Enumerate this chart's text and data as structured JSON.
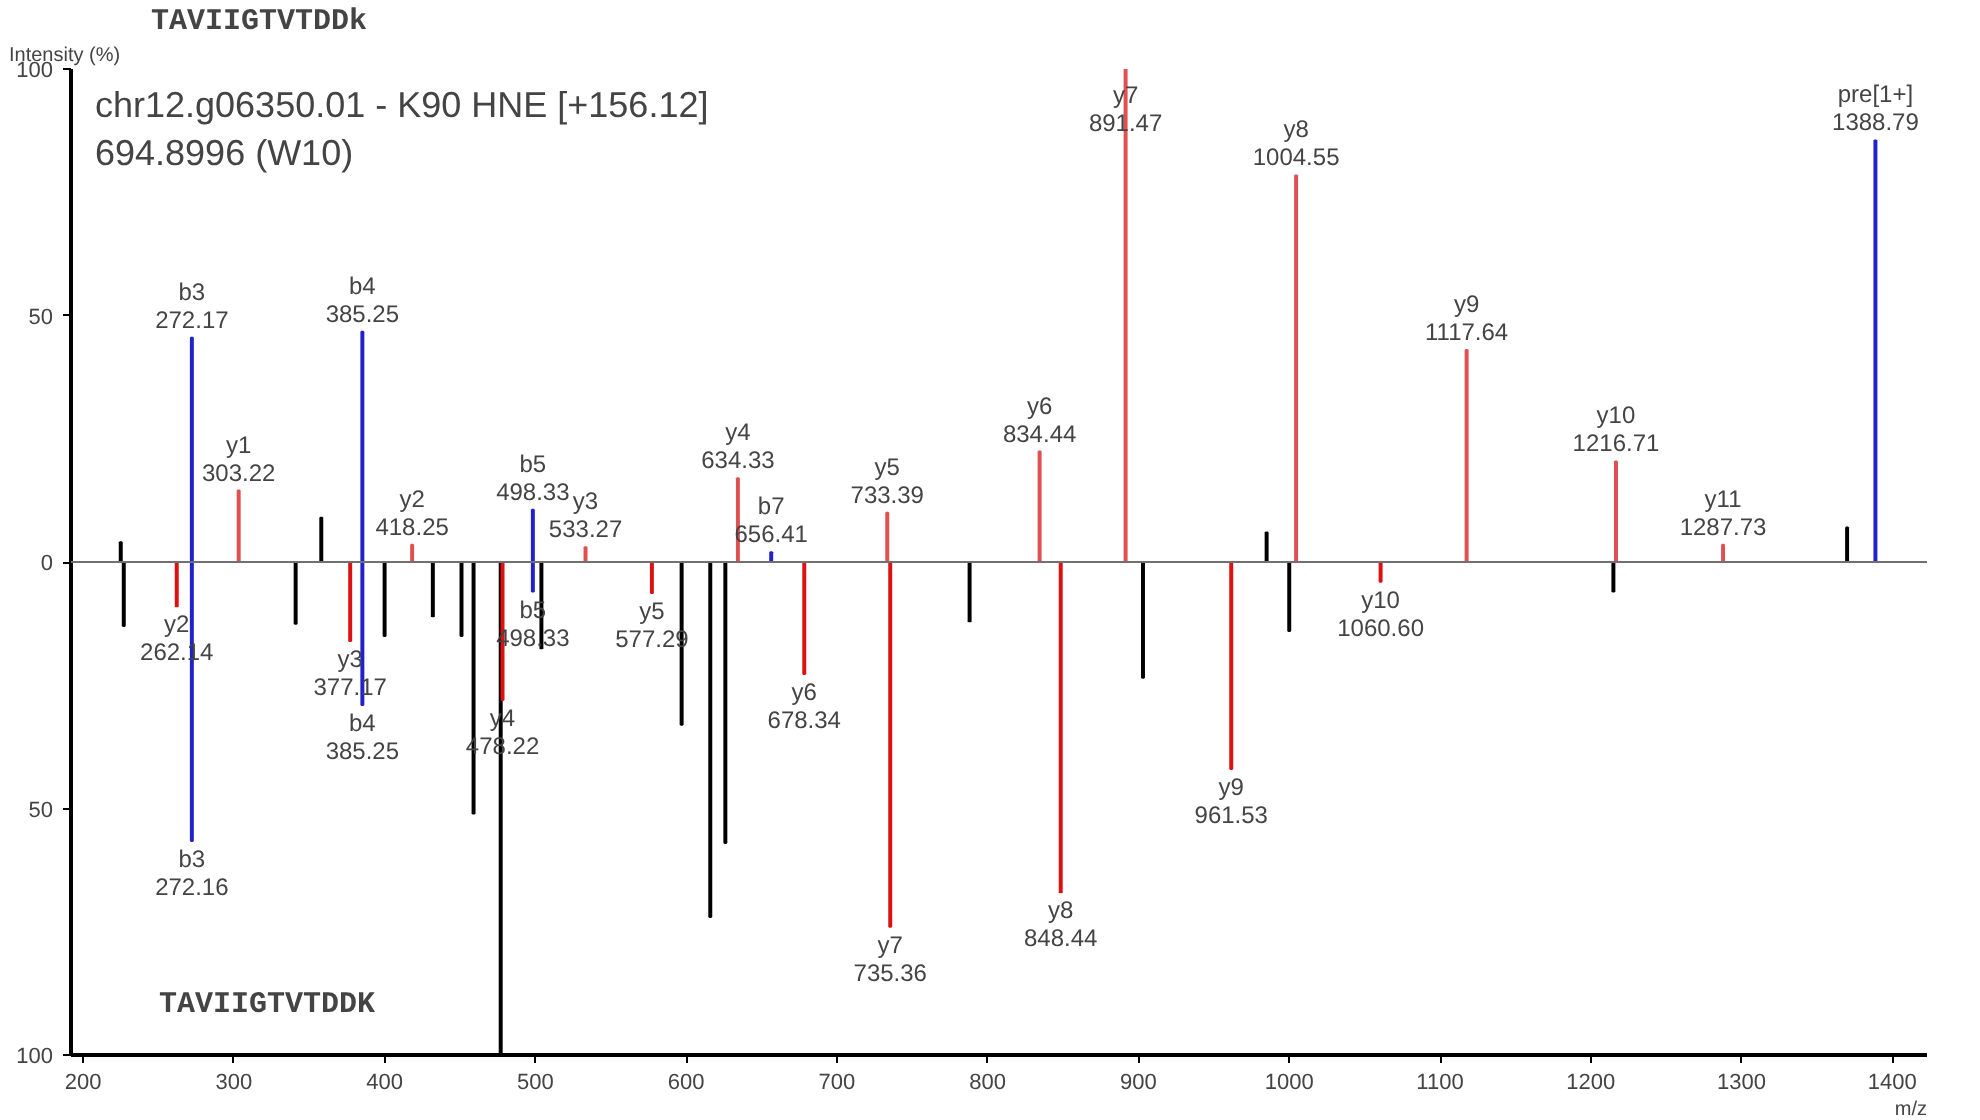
{
  "chart_data": {
    "type": "bar",
    "title": "chr12.g06350.01 - K90 HNE [+156.12]",
    "subtitle": "694.8996 (W10)",
    "xlabel": "m/z",
    "ylabel": "Intensity (%)",
    "xlim": [
      192,
      1423
    ],
    "xticks": [
      200,
      300,
      400,
      500,
      600,
      700,
      800,
      900,
      1000,
      1100,
      1200,
      1300,
      1400
    ],
    "ylim": [
      -100,
      100
    ],
    "yticks": [
      {
        "value": -100,
        "label": "100"
      },
      {
        "value": -50,
        "label": "50"
      },
      0,
      50,
      100
    ],
    "grid": false,
    "series": [
      {
        "color": "#000000",
        "x": [
          225,
          227,
          341,
          358,
          400,
          432,
          451,
          459,
          477,
          504,
          597,
          616,
          626,
          788,
          903,
          985,
          1000,
          1215,
          1370
        ],
        "values": [
          4,
          -13,
          -12.5,
          9,
          -15,
          -11,
          -15,
          -51,
          -100,
          -17.5,
          -33,
          -72,
          -57,
          -12,
          -23.5,
          6,
          -14,
          -6,
          7
        ]
      },
      {
        "color": "#2222cc",
        "x": [
          272.17,
          385.25,
          498.33,
          656.41,
          1388.79
        ],
        "values": [
          45.5,
          46.7,
          10.6,
          2,
          85.5
        ]
      },
      {
        "color": "#2222cc",
        "x": [
          272.16,
          385.25,
          498.33
        ],
        "values": [
          -56.6,
          -29,
          -6
        ]
      },
      {
        "color": "#e05050",
        "x": [
          303.22,
          418.25,
          533.27,
          634.33,
          733.39,
          834.44,
          891.47,
          1004.55,
          1117.64,
          1216.71,
          1287.73
        ],
        "values": [
          14.5,
          3.5,
          3,
          17,
          10,
          22.4,
          100,
          78.4,
          43,
          20.4,
          3.5
        ]
      },
      {
        "color": "#dd1111",
        "x": [
          262.14,
          377.17,
          478.22,
          577.29,
          678.34,
          735.36,
          848.44,
          961.53,
          1060.6
        ],
        "values": [
          -9,
          -16,
          -28,
          -6.3,
          -22.7,
          -74,
          -67,
          -42,
          -4
        ]
      }
    ],
    "ref_lines": [
      {
        "axis": "y",
        "value": 0,
        "color": "#707070"
      }
    ],
    "annotations": [
      "TAVIIGTVTDDk",
      "TAVIIGTVTDDK",
      {
        "text": "b3\n272.17",
        "x": 272.17,
        "y": 45.5
      },
      {
        "text": "y1\n303.22",
        "x": 303.22,
        "y": 14.5
      },
      {
        "text": "b4\n385.25",
        "x": 385.25,
        "y": 46.7
      },
      {
        "text": "y2\n418.25",
        "x": 418.25,
        "y": 3.5
      },
      {
        "text": "b5\n498.33",
        "x": 498.33,
        "y": 10.6
      },
      {
        "text": "y3\n533.27",
        "x": 533.27,
        "y": 3
      },
      {
        "text": "y4\n634.33",
        "x": 634.33,
        "y": 17
      },
      {
        "text": "b7\n656.41",
        "x": 656.41,
        "y": 2
      },
      {
        "text": "y5\n733.39",
        "x": 733.39,
        "y": 10
      },
      {
        "text": "y6\n834.44",
        "x": 834.44,
        "y": 22.4
      },
      {
        "text": "y7\n891.47",
        "x": 891.47,
        "y": 100
      },
      {
        "text": "y8\n1004.55",
        "x": 1004.55,
        "y": 78.4
      },
      {
        "text": "y9\n1117.64",
        "x": 1117.64,
        "y": 43
      },
      {
        "text": "y10\n1216.71",
        "x": 1216.71,
        "y": 20.4
      },
      {
        "text": "y11\n1287.73",
        "x": 1287.73,
        "y": 3.5
      },
      {
        "text": "pre[1+]\n1388.79",
        "x": 1388.79,
        "y": 85.5
      },
      {
        "text": "y2\n262.14",
        "x": 262.14,
        "y": -9
      },
      {
        "text": "b3\n272.16",
        "x": 272.16,
        "y": -56.6
      },
      {
        "text": "y3\n377.17",
        "x": 377.17,
        "y": -16
      },
      {
        "text": "b4\n385.25",
        "x": 385.25,
        "y": -29
      },
      {
        "text": "y4\n478.22",
        "x": 478.22,
        "y": -28
      },
      {
        "text": "b5\n498.33",
        "x": 498.33,
        "y": -6
      },
      {
        "text": "y5\n577.29",
        "x": 577.29,
        "y": -6.3
      },
      {
        "text": "y6\n678.34",
        "x": 678.34,
        "y": -22.7
      },
      {
        "text": "y7\n735.36",
        "x": 735.36,
        "y": -74
      },
      {
        "text": "y8\n848.44",
        "x": 848.44,
        "y": -67
      },
      {
        "text": "y9\n961.53",
        "x": 961.53,
        "y": -42
      },
      {
        "text": "y10\n1060.60",
        "x": 1060.6,
        "y": -4
      }
    ]
  }
}
